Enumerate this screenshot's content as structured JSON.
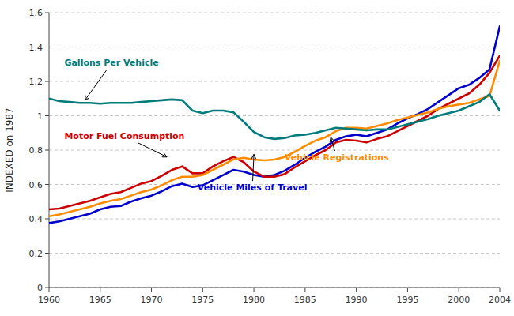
{
  "chart_data": {
    "type": "line",
    "ylabel": "INDEXED on 1987",
    "xlim": [
      1960,
      2004
    ],
    "ylim": [
      0,
      1.6
    ],
    "yticks": [
      0,
      0.2,
      0.4,
      0.6,
      0.8,
      1,
      1.2,
      1.4,
      1.6
    ],
    "xticks": [
      1960,
      1965,
      1970,
      1975,
      1980,
      1985,
      1990,
      1995,
      2000,
      2004
    ],
    "grid": "y",
    "x": [
      1960,
      1961,
      1962,
      1963,
      1964,
      1965,
      1966,
      1967,
      1968,
      1969,
      1970,
      1971,
      1972,
      1973,
      1974,
      1975,
      1976,
      1977,
      1978,
      1979,
      1980,
      1981,
      1982,
      1983,
      1984,
      1985,
      1986,
      1987,
      1988,
      1989,
      1990,
      1991,
      1992,
      1993,
      1994,
      1995,
      1996,
      1997,
      1998,
      1999,
      2000,
      2001,
      2002,
      2003,
      2004
    ],
    "series": [
      {
        "color": "#0000CC",
        "values": [
          0.375,
          0.385,
          0.4,
          0.415,
          0.43,
          0.455,
          0.47,
          0.475,
          0.5,
          0.52,
          0.535,
          0.56,
          0.59,
          0.605,
          0.585,
          0.595,
          0.625,
          0.655,
          0.685,
          0.675,
          0.655,
          0.645,
          0.655,
          0.68,
          0.715,
          0.755,
          0.79,
          0.82,
          0.86,
          0.88,
          0.89,
          0.88,
          0.9,
          0.92,
          0.955,
          0.985,
          1.01,
          1.04,
          1.08,
          1.12,
          1.16,
          1.18,
          1.22,
          1.27,
          1.52
        ]
      },
      {
        "color": "#CC0000",
        "values": [
          0.455,
          0.46,
          0.475,
          0.49,
          0.505,
          0.525,
          0.545,
          0.555,
          0.58,
          0.605,
          0.62,
          0.65,
          0.685,
          0.705,
          0.665,
          0.665,
          0.705,
          0.735,
          0.76,
          0.73,
          0.675,
          0.645,
          0.645,
          0.66,
          0.7,
          0.735,
          0.77,
          0.8,
          0.845,
          0.86,
          0.855,
          0.845,
          0.865,
          0.88,
          0.91,
          0.94,
          0.97,
          1.0,
          1.04,
          1.07,
          1.1,
          1.13,
          1.18,
          1.25,
          1.35
        ]
      },
      {
        "color": "#FF8C00",
        "values": [
          0.415,
          0.425,
          0.44,
          0.455,
          0.47,
          0.49,
          0.505,
          0.515,
          0.535,
          0.555,
          0.57,
          0.595,
          0.625,
          0.645,
          0.645,
          0.655,
          0.685,
          0.715,
          0.745,
          0.755,
          0.745,
          0.74,
          0.745,
          0.76,
          0.79,
          0.825,
          0.855,
          0.875,
          0.91,
          0.93,
          0.93,
          0.925,
          0.94,
          0.955,
          0.975,
          0.99,
          1.005,
          1.02,
          1.04,
          1.055,
          1.065,
          1.075,
          1.095,
          1.115,
          1.32
        ]
      },
      {
        "color": "#007B7B",
        "values": [
          1.1,
          1.085,
          1.08,
          1.075,
          1.075,
          1.07,
          1.075,
          1.075,
          1.075,
          1.08,
          1.085,
          1.09,
          1.095,
          1.09,
          1.03,
          1.015,
          1.03,
          1.03,
          1.02,
          0.965,
          0.905,
          0.875,
          0.865,
          0.87,
          0.885,
          0.89,
          0.9,
          0.915,
          0.93,
          0.925,
          0.92,
          0.915,
          0.92,
          0.92,
          0.935,
          0.95,
          0.965,
          0.98,
          1.0,
          1.015,
          1.03,
          1.055,
          1.08,
          1.125,
          1.03
        ]
      }
    ],
    "annotations": [
      {
        "text": "Gallons Per Vehicle",
        "xy": [
          1963.5,
          1.09
        ],
        "xytext": [
          1961.5,
          1.29
        ],
        "color": "#007B7B"
      },
      {
        "text": "Motor Fuel Consumption",
        "xy": [
          1971.5,
          0.76
        ],
        "xytext": [
          1961.5,
          0.865
        ],
        "color": "#CC0000"
      },
      {
        "text": "Vehicle Miles of Travel",
        "xy": [
          1980.0,
          0.775
        ],
        "xytext": [
          1974.5,
          0.565
        ],
        "color": "#0000CC"
      },
      {
        "text": "Vehicle Registrations",
        "xy": [
          1987.5,
          0.875
        ],
        "xytext": [
          1983.0,
          0.74
        ],
        "color": "#FF8C00"
      }
    ]
  }
}
